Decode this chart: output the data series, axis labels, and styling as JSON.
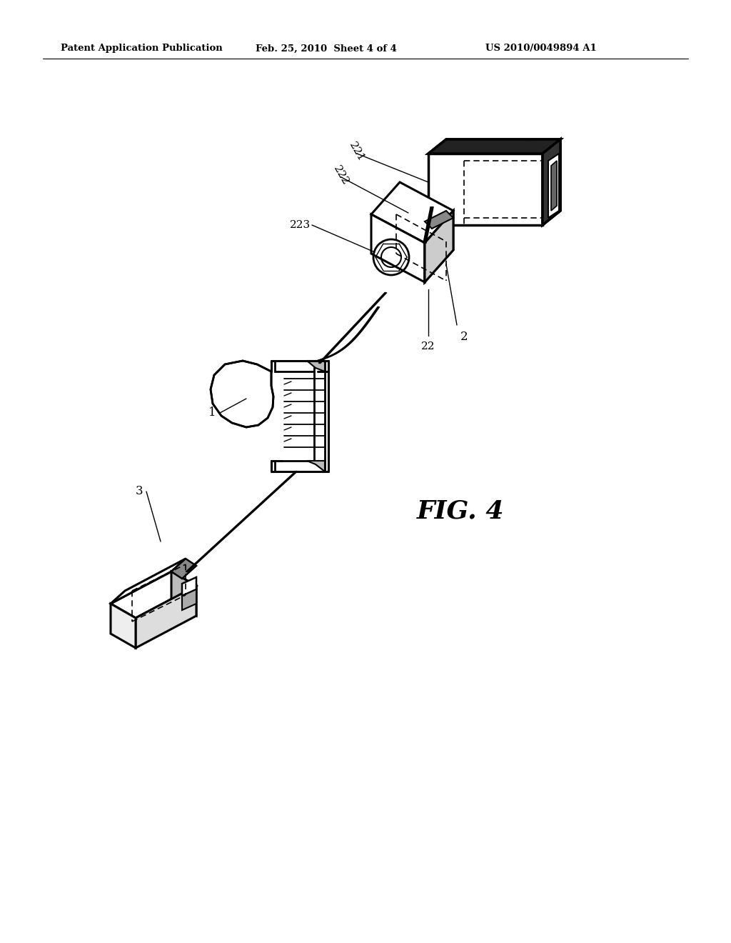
{
  "background_color": "#ffffff",
  "line_color": "#000000",
  "header_left": "Patent Application Publication",
  "header_center": "Feb. 25, 2010  Sheet 4 of 4",
  "header_right": "US 2010/0049894 A1",
  "fig_label": "FIG. 4"
}
